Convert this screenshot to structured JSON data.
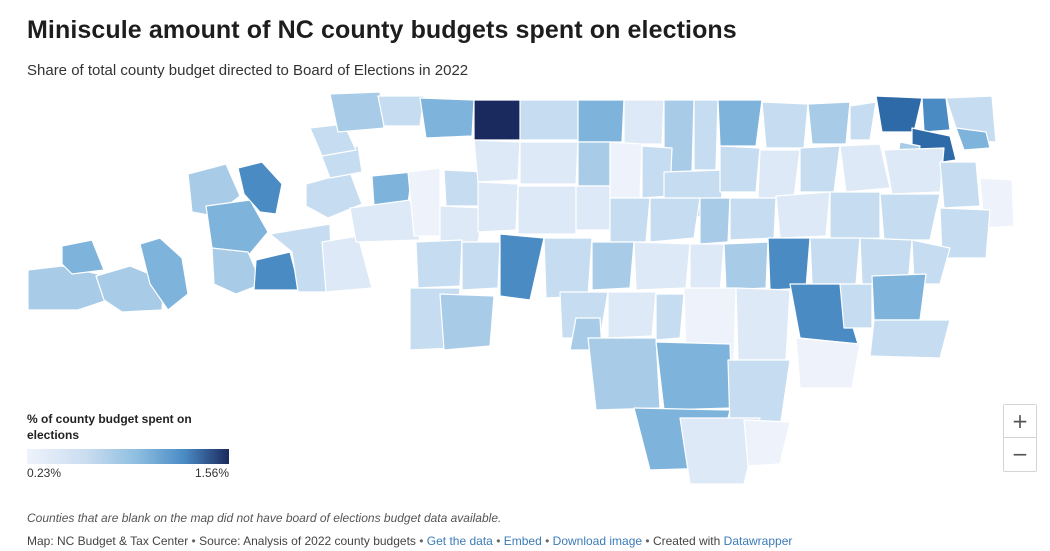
{
  "header": {
    "title": "Miniscule amount of NC county budgets spent on elections",
    "subtitle": "Share of total county budget directed to Board of Elections in 2022"
  },
  "legend": {
    "title": "% of county budget spent on elections",
    "min_label": "0.23%",
    "max_label": "1.56%",
    "color_low": "#eef3fb",
    "color_high": "#1a2a5e"
  },
  "note": "Counties that are blank on the map did not have board of elections budget data available.",
  "footer": {
    "credit": "Map: NC Budget & Tax Center",
    "source": "Source: Analysis of 2022 county budgets",
    "links": [
      "Get the data",
      "Embed",
      "Download image"
    ],
    "created_with_prefix": "Created with",
    "created_with_link": "Datawrapper",
    "separator": "•"
  },
  "zoom": {
    "in_label": "+",
    "out_label": "−"
  },
  "map_colors": {
    "darkest": "#1a2a5e",
    "dark": "#2f6aa8",
    "mid_dark": "#4a8bc4",
    "mid": "#7eb3dc",
    "mid_light": "#a8cbe8",
    "light": "#c6dcf0",
    "very_light": "#dde9f6",
    "palest": "#eef3fb"
  }
}
